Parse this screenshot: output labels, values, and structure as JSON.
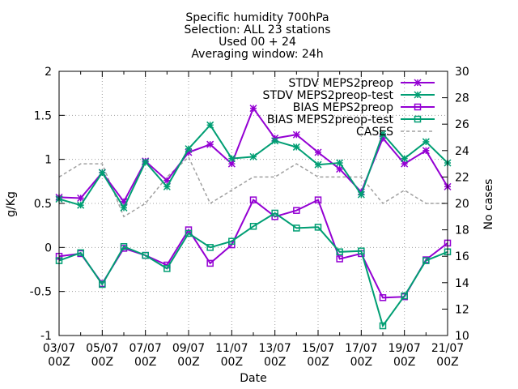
{
  "chart_data": {
    "type": "line",
    "title_lines": [
      "Specific humidity 700hPa",
      "Selection: ALL      23 stations",
      "Used 00 + 24",
      "Averaging window: 24h"
    ],
    "xlabel": "Date",
    "ylabel": "g/Kg",
    "y2label": "No cases",
    "ylim": [
      -1,
      2
    ],
    "y2lim": [
      10,
      30
    ],
    "yticks": [
      "-1",
      "-0.5",
      "0",
      "0.5",
      "1",
      "1.5",
      "2"
    ],
    "y2ticks": [
      "10",
      "12",
      "14",
      "16",
      "18",
      "20",
      "22",
      "24",
      "26",
      "28",
      "30"
    ],
    "xtick_dates": [
      "03/07",
      "05/07",
      "07/07",
      "09/07",
      "11/07",
      "13/07",
      "15/07",
      "17/07",
      "19/07",
      "21/07"
    ],
    "xtick_hour": "00Z",
    "x_count": 19,
    "legend_position": "top-right",
    "series": [
      {
        "name": "STDV MEPS2preop",
        "axis": "y",
        "marker": "star",
        "color": "#9400d3",
        "values": [
          0.57,
          0.56,
          0.85,
          0.52,
          0.98,
          0.76,
          1.08,
          1.17,
          0.95,
          1.58,
          1.24,
          1.28,
          1.08,
          0.89,
          0.63,
          1.24,
          0.95,
          1.1,
          0.69
        ]
      },
      {
        "name": "STDV MEPS2preop-test",
        "axis": "y",
        "marker": "star",
        "color": "#009e73",
        "values": [
          0.55,
          0.48,
          0.85,
          0.45,
          0.97,
          0.69,
          1.12,
          1.39,
          1.01,
          1.03,
          1.21,
          1.14,
          0.94,
          0.96,
          0.6,
          1.29,
          1.01,
          1.2,
          0.96
        ]
      },
      {
        "name": "BIAS MEPS2preop",
        "axis": "y",
        "marker": "square",
        "color": "#9400d3",
        "values": [
          -0.1,
          -0.07,
          -0.41,
          -0.01,
          -0.09,
          -0.2,
          0.2,
          -0.18,
          0.03,
          0.54,
          0.35,
          0.42,
          0.54,
          -0.13,
          -0.07,
          -0.57,
          -0.56,
          -0.14,
          0.05
        ]
      },
      {
        "name": "BIAS MEPS2preop-test",
        "axis": "y",
        "marker": "square",
        "color": "#009e73",
        "values": [
          -0.15,
          -0.06,
          -0.42,
          0.01,
          -0.09,
          -0.24,
          0.16,
          0.0,
          0.07,
          0.24,
          0.39,
          0.22,
          0.23,
          -0.05,
          -0.04,
          -0.89,
          -0.55,
          -0.15,
          -0.05
        ]
      },
      {
        "name": "CASES",
        "axis": "y2",
        "marker": "none",
        "color": "#a0a0a0",
        "dashed": true,
        "values": [
          22.0,
          23.0,
          23.0,
          19.0,
          20.0,
          22.0,
          23.5,
          20.0,
          21.0,
          22.0,
          22.0,
          23.0,
          22.0,
          22.0,
          22.0,
          20.0,
          21.0,
          20.0,
          20.0
        ]
      }
    ]
  }
}
